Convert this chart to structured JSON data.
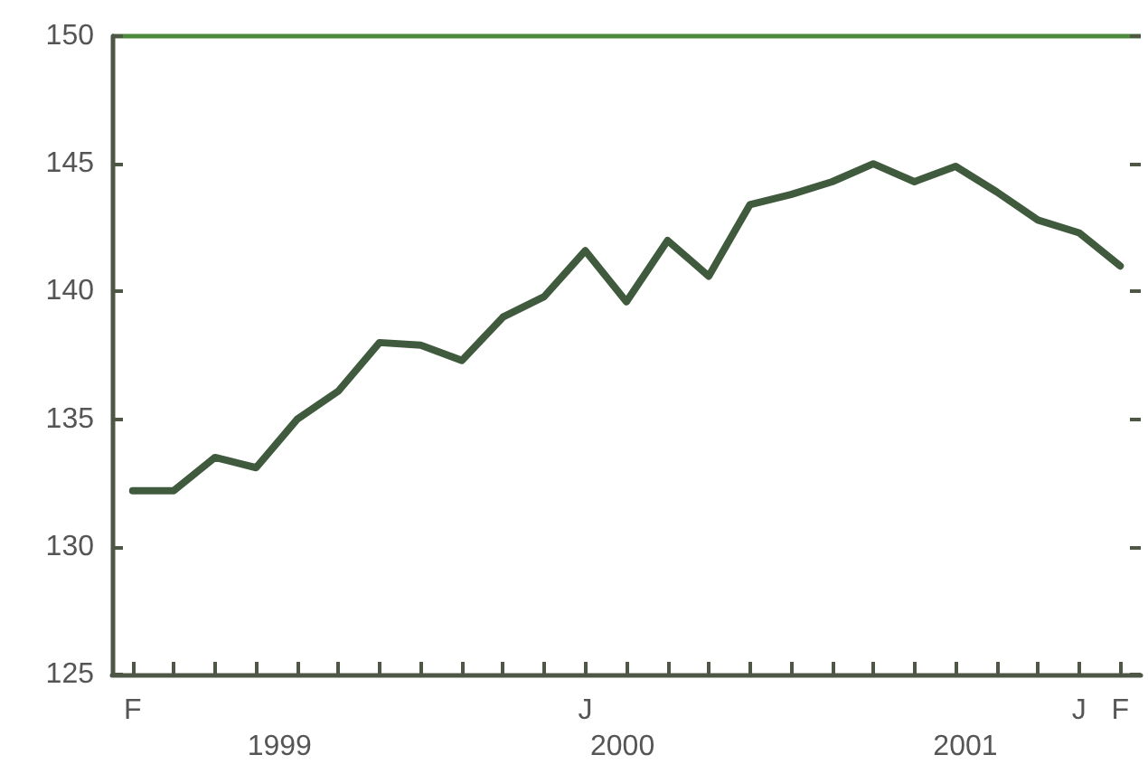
{
  "chart_data": {
    "type": "line",
    "categories": [
      "F",
      null,
      null,
      null,
      null,
      null,
      null,
      null,
      null,
      null,
      null,
      "J",
      null,
      null,
      null,
      null,
      null,
      null,
      null,
      null,
      null,
      null,
      null,
      "J",
      "F"
    ],
    "series": [
      {
        "color": "#3f5a3c",
        "values": [
          132.2,
          132.2,
          133.5,
          133.1,
          135.0,
          136.1,
          138.0,
          137.9,
          137.3,
          139.0,
          139.8,
          141.6,
          139.6,
          142.0,
          140.6,
          143.4,
          143.8,
          144.3,
          145.0,
          144.3,
          144.9,
          143.9,
          142.8,
          142.3,
          141.0
        ]
      }
    ],
    "ylim": [
      125,
      150
    ],
    "yticks": [
      125,
      130,
      135,
      140,
      145,
      150
    ],
    "annotations": [
      "1999",
      "2000",
      "2001"
    ],
    "grid": false,
    "marker": "none",
    "line_style": "solid"
  }
}
